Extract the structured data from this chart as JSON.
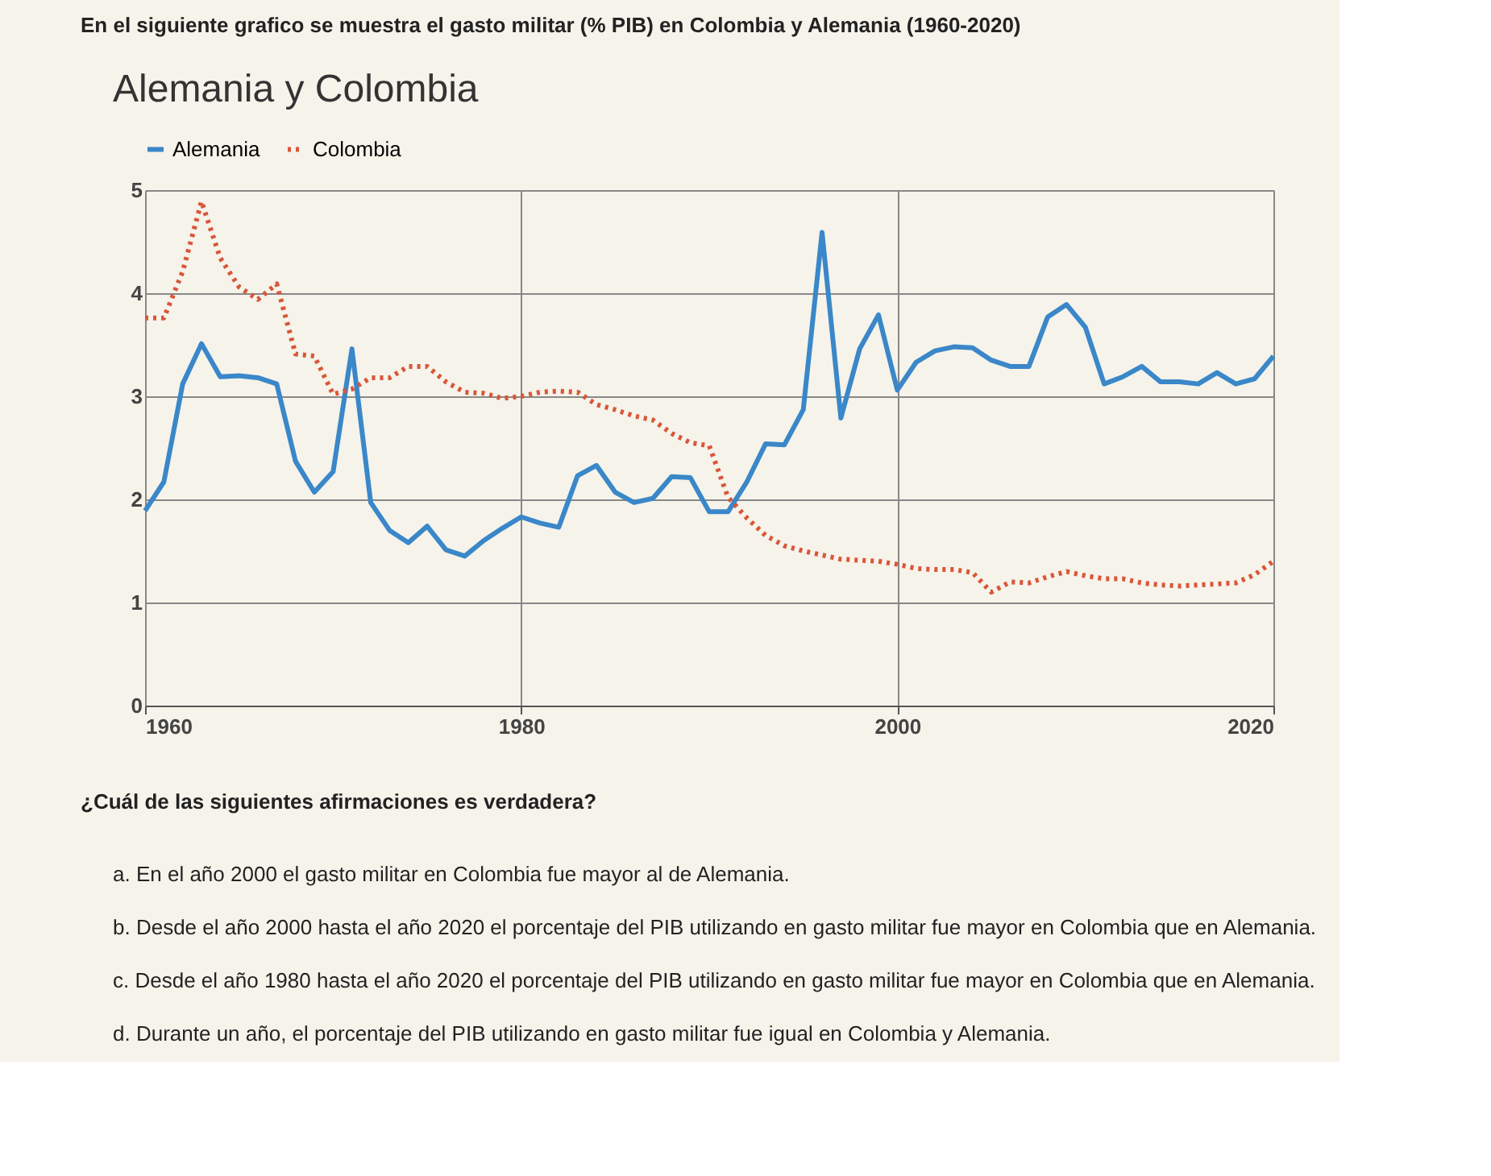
{
  "chart_data": {
    "type": "line",
    "title": "Alemania y Colombia",
    "x": [
      1960,
      1961,
      1962,
      1963,
      1964,
      1965,
      1966,
      1967,
      1968,
      1969,
      1970,
      1971,
      1972,
      1973,
      1974,
      1975,
      1976,
      1977,
      1978,
      1979,
      1980,
      1981,
      1982,
      1983,
      1984,
      1985,
      1986,
      1987,
      1988,
      1989,
      1990,
      1991,
      1992,
      1993,
      1994,
      1995,
      1996,
      1997,
      1998,
      1999,
      2000,
      2001,
      2002,
      2003,
      2004,
      2005,
      2006,
      2007,
      2008,
      2009,
      2010,
      2011,
      2012,
      2013,
      2014,
      2015,
      2016,
      2017,
      2018,
      2019,
      2020
    ],
    "series": [
      {
        "name": "Alemania",
        "color": "#3a87c9",
        "line_style": "solid",
        "values": [
          1.89,
          2.17,
          3.12,
          3.51,
          3.19,
          3.2,
          3.18,
          3.12,
          2.37,
          2.07,
          2.27,
          3.46,
          1.97,
          1.7,
          1.58,
          1.74,
          1.51,
          1.45,
          1.6,
          1.72,
          1.83,
          1.77,
          1.73,
          2.23,
          2.33,
          2.07,
          1.97,
          2.01,
          2.22,
          2.21,
          1.88,
          1.88,
          2.17,
          2.54,
          2.53,
          2.87,
          4.59,
          2.79,
          3.46,
          3.79,
          3.06,
          3.33,
          3.44,
          3.48,
          3.47,
          3.35,
          3.29,
          3.29,
          3.77,
          3.89,
          3.67,
          3.12,
          3.19,
          3.29,
          3.14,
          3.14,
          3.12,
          3.23,
          3.12,
          3.17,
          3.39
        ]
      },
      {
        "name": "Colombia",
        "color": "#d9563a",
        "line_style": "dotted",
        "values": [
          3.76,
          3.76,
          4.21,
          4.89,
          4.34,
          4.06,
          3.94,
          4.09,
          3.41,
          3.39,
          3.02,
          3.07,
          3.18,
          3.18,
          3.29,
          3.29,
          3.14,
          3.04,
          3.03,
          2.98,
          3.0,
          3.04,
          3.05,
          3.04,
          2.92,
          2.87,
          2.81,
          2.77,
          2.64,
          2.55,
          2.52,
          2.02,
          1.82,
          1.65,
          1.55,
          1.5,
          1.46,
          1.42,
          1.41,
          1.4,
          1.37,
          1.33,
          1.32,
          1.32,
          1.29,
          1.1,
          1.2,
          1.19,
          1.25,
          1.3,
          1.26,
          1.23,
          1.23,
          1.19,
          1.17,
          1.16,
          1.17,
          1.18,
          1.19,
          1.27,
          1.4
        ]
      }
    ],
    "xlim": [
      1960,
      2020
    ],
    "xticks": [
      1960,
      1980,
      2000,
      2020
    ],
    "ylim": [
      0,
      5
    ],
    "yticks": [
      0,
      1,
      2,
      3,
      4,
      5
    ],
    "grid": true,
    "legend": "top",
    "marker": "none",
    "annotations": [
      "En el siguiente grafico se muestra el gasto militar (% PIB) en Colombia y Alemania (1960-2020)",
      "¿Cuál de las siguientes afirmaciones es verdadera?",
      "a.  En el año 2000 el gasto militar en Colombia fue mayor al de Alemania.",
      "b.  Desde el año 2000 hasta el año 2020 el porcentaje del PIB utilizando en gasto militar fue mayor en Colombia que en Alemania.",
      "c.  Desde el año 1980 hasta el año 2020 el porcentaje del PIB utilizando en gasto militar fue mayor en Colombia que en Alemania.",
      "d.  Durante un año, el porcentaje del PIB utilizando en gasto militar fue igual en Colombia y Alemania."
    ]
  }
}
